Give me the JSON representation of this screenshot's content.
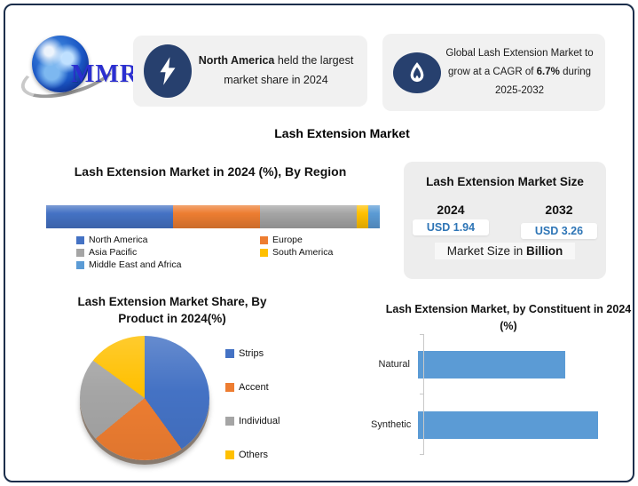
{
  "page": {
    "main_title": "Lash Extension Market"
  },
  "logo": {
    "text": "MMR"
  },
  "callouts": {
    "market_share": {
      "bold": "North America",
      "rest": " held the largest market share in 2024"
    },
    "cagr": {
      "part1": "Global Lash Extension Market to grow at a CAGR of ",
      "bold": "6.7%",
      "part2": " during 2025-2032"
    }
  },
  "market_size_box": {
    "title": "Lash Extension Market Size",
    "years": [
      "2024",
      "2032"
    ],
    "values": [
      "USD 1.94",
      "USD 3.26"
    ],
    "footer_prefix": "Market Size in ",
    "footer_bold": "Billion"
  },
  "colors": {
    "frame_border": "#1b2e4b",
    "icon_navy": "#27406e",
    "value_blue": "#2e75b6",
    "callout_bg": "#f1f1f1"
  },
  "chart_data": [
    {
      "type": "bar",
      "variant": "stacked-horizontal",
      "title": "Lash Extension Market in 2024 (%), By Region",
      "categories": [
        "North America",
        "Europe",
        "Asia Pacific",
        "South America",
        "Middle East and Africa"
      ],
      "values": [
        38,
        26,
        29,
        3.5,
        3.5
      ],
      "colors": [
        "#4472C4",
        "#ED7D31",
        "#A5A5A5",
        "#FFC000",
        "#5B9BD5"
      ],
      "legend_position": "bottom"
    },
    {
      "type": "pie",
      "title": "Lash Extension Market Share, By Product in 2024(%)",
      "categories": [
        "Strips",
        "Accent",
        "Individual",
        "Others"
      ],
      "values": [
        40,
        24,
        21,
        15
      ],
      "colors": [
        "#4472C4",
        "#ED7D31",
        "#A5A5A5",
        "#FFC000"
      ],
      "legend_position": "right"
    },
    {
      "type": "bar",
      "variant": "horizontal",
      "title": "Lash Extension Market, by Constituent in 2024 (%)",
      "categories": [
        "Natural",
        "Synthetic"
      ],
      "values": [
        45,
        55
      ],
      "xmax": 60,
      "color": "#5B9BD5",
      "grid": false
    }
  ]
}
